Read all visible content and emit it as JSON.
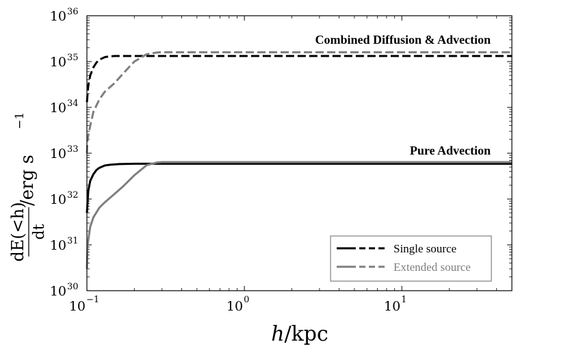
{
  "chart_data": {
    "type": "line",
    "xscale": "log",
    "yscale": "log",
    "xlim": [
      0.1,
      50
    ],
    "ylim": [
      1e+30,
      1e+36
    ],
    "xlabel": "h/kpc",
    "ylabel_parts": {
      "numerator": "dE(<h)",
      "denominator": "dt",
      "units": "/erg s",
      "units_exponent": "−1"
    },
    "x_ticks": [
      {
        "base": "10",
        "exp": "−1"
      },
      {
        "base": "10",
        "exp": "0"
      },
      {
        "base": "10",
        "exp": "1"
      }
    ],
    "y_ticks": [
      {
        "base": "10",
        "exp": "30"
      },
      {
        "base": "10",
        "exp": "31"
      },
      {
        "base": "10",
        "exp": "32"
      },
      {
        "base": "10",
        "exp": "33"
      },
      {
        "base": "10",
        "exp": "34"
      },
      {
        "base": "10",
        "exp": "35"
      },
      {
        "base": "10",
        "exp": "36"
      }
    ],
    "annotations": [
      {
        "text": "Combined Diffusion & Advection"
      },
      {
        "text": "Pure Advection"
      }
    ],
    "legend": {
      "placement": "lower-right",
      "entries": [
        {
          "label": "Single source",
          "color": "#000000"
        },
        {
          "label": "Extended source",
          "color": "#7f7f7f"
        }
      ]
    },
    "series": [
      {
        "group": "Combined Diffusion & Advection",
        "source": "Single source",
        "style": "dashed",
        "color": "#000000",
        "x": [
          0.1,
          0.102,
          0.105,
          0.11,
          0.115,
          0.12,
          0.13,
          0.14,
          0.15,
          0.2,
          0.3,
          1,
          10,
          50
        ],
        "y": [
          1.3e+34,
          3e+34,
          5e+34,
          7.5e+34,
          9.5e+34,
          1.1e+35,
          1.25e+35,
          1.3e+35,
          1.32e+35,
          1.32e+35,
          1.32e+35,
          1.32e+35,
          1.32e+35,
          1.32e+35
        ]
      },
      {
        "group": "Combined Diffusion & Advection",
        "source": "Extended source",
        "style": "dashed",
        "color": "#7f7f7f",
        "x": [
          0.1,
          0.101,
          0.105,
          0.11,
          0.12,
          0.13,
          0.15,
          0.17,
          0.2,
          0.24,
          0.28,
          0.3,
          1,
          10,
          50
        ],
        "y": [
          1e+33,
          2e+33,
          4e+33,
          8e+33,
          1.5e+34,
          2.2e+34,
          3.4e+34,
          5.5e+34,
          1e+35,
          1.45e+35,
          1.58e+35,
          1.6e+35,
          1.6e+35,
          1.6e+35,
          1.6e+35
        ]
      },
      {
        "group": "Pure Advection",
        "source": "Single source",
        "style": "solid",
        "color": "#000000",
        "x": [
          0.1,
          0.102,
          0.105,
          0.11,
          0.115,
          0.12,
          0.13,
          0.14,
          0.16,
          0.2,
          0.3,
          1,
          10,
          50
        ],
        "y": [
          5e+31,
          1.5e+32,
          2.5e+32,
          3.5e+32,
          4.3e+32,
          4.8e+32,
          5.4e+32,
          5.6e+32,
          5.8e+32,
          5.9e+32,
          5.9e+32,
          5.9e+32,
          5.9e+32,
          5.9e+32
        ]
      },
      {
        "group": "Pure Advection",
        "source": "Extended source",
        "style": "solid",
        "color": "#7f7f7f",
        "x": [
          0.1,
          0.101,
          0.105,
          0.11,
          0.12,
          0.13,
          0.15,
          0.17,
          0.2,
          0.24,
          0.28,
          0.3,
          1,
          10,
          50
        ],
        "y": [
          3e+30,
          1e+31,
          2.5e+31,
          4e+31,
          6.5e+31,
          8.5e+31,
          1.3e+32,
          1.9e+32,
          3.3e+32,
          5.5e+32,
          6.3e+32,
          6.4e+32,
          6.4e+32,
          6.4e+32,
          6.4e+32
        ]
      }
    ]
  }
}
